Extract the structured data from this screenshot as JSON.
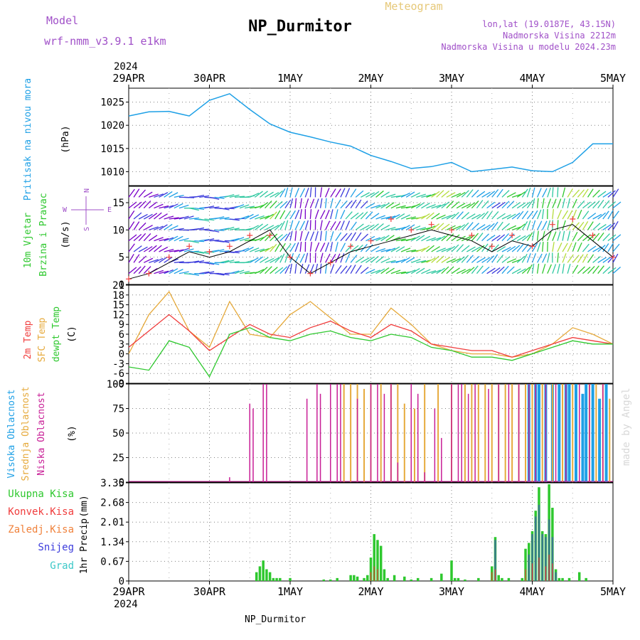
{
  "header": {
    "model_label": "Model",
    "model_name": "wrf-nmm_v3.9.1 e1km",
    "title": "NP_Durmitor",
    "meteogram_label": "Meteogram",
    "lonlat": "lon,lat (19.0187E, 43.15N)",
    "altitude": "Nadmorska Visina 2212m",
    "model_altitude": "Nadmorska Visina u modelu 2024.23m",
    "footer_station": "NP_Durmitor",
    "credit": "made by Angel",
    "year": "2024"
  },
  "colors": {
    "pressure": "#1ea0e6",
    "wind_label": "#2ec82e",
    "temp2m": "#f03c3c",
    "sfc": "#e6aa3c",
    "dewpt": "#2ec82e",
    "high_cloud": "#1ea0e6",
    "mid_cloud": "#e6aa3c",
    "low_cloud": "#c81e96",
    "total_precip": "#2ec82e",
    "conv_precip": "#f03c3c",
    "frozen_precip": "#f0823c",
    "snow": "#3c3cdc",
    "graupel": "#3cc8c8",
    "compass": "#a050c8"
  },
  "chart_data": [
    {
      "id": "pressure",
      "type": "line",
      "ylabel_name": "Pritisak na nivou mora",
      "ylabel_unit": "(hPa)",
      "xticks": [
        "29APR",
        "30APR",
        "1MAY",
        "2MAY",
        "3MAY",
        "4MAY",
        "5MAY"
      ],
      "ylim": [
        1007,
        1028
      ],
      "yticks": [
        1010,
        1015,
        1020,
        1025
      ],
      "grid": true,
      "x_hours": [
        0,
        6,
        12,
        18,
        24,
        30,
        36,
        42,
        48,
        54,
        60,
        66,
        72,
        78,
        84,
        90,
        96,
        102,
        108,
        114,
        120,
        126,
        132,
        138,
        144
      ],
      "values": [
        1022.0,
        1022.9,
        1023.0,
        1022.0,
        1025.4,
        1026.8,
        1023.4,
        1020.3,
        1018.5,
        1017.5,
        1016.4,
        1015.5,
        1013.5,
        1012.2,
        1010.7,
        1011.1,
        1012.0,
        1010.0,
        1010.5,
        1011.0,
        1010.2,
        1010.0,
        1012.0,
        1016.0,
        1016.0
      ]
    },
    {
      "id": "wind",
      "type": "line",
      "ylabel_name": "10m Vjetar",
      "ylabel_sub": "Brzina i Pravac",
      "ylabel_unit": "(m/s)",
      "compass": {
        "n": "N",
        "w": "W",
        "e": "E",
        "s": "S"
      },
      "ylim": [
        0,
        18
      ],
      "yticks": [
        0,
        5,
        10,
        15
      ],
      "grid": true,
      "x_hours": [
        0,
        6,
        12,
        18,
        24,
        30,
        36,
        42,
        48,
        54,
        60,
        66,
        72,
        78,
        84,
        90,
        96,
        102,
        108,
        114,
        120,
        126,
        132,
        138,
        144
      ],
      "speed": [
        1,
        2,
        4,
        6,
        5,
        6,
        8,
        10,
        5,
        2,
        4,
        6,
        7,
        8,
        9,
        10,
        9,
        8,
        6,
        8,
        7,
        10,
        11,
        8,
        5
      ],
      "gust": [
        1,
        2,
        5,
        7,
        6,
        7,
        9,
        9,
        5,
        2,
        4,
        7,
        8,
        12,
        10,
        11,
        10,
        9,
        7,
        9,
        7,
        11,
        12,
        9,
        5
      ],
      "direction_deg": [
        220,
        240,
        250,
        270,
        270,
        265,
        250,
        230,
        200,
        190,
        200,
        220,
        240,
        250,
        250,
        240,
        235,
        230,
        225,
        240,
        200,
        190,
        210,
        230,
        220
      ]
    },
    {
      "id": "temp",
      "type": "line",
      "ylabel_names": [
        "2m Temp",
        "SFC Temp",
        "dewpt Temp"
      ],
      "ylabel_unit": "(C)",
      "ylim": [
        -9,
        21
      ],
      "yticks": [
        -9,
        -6,
        -3,
        0,
        3,
        6,
        9,
        12,
        15,
        18,
        21
      ],
      "grid": true,
      "x_hours": [
        0,
        6,
        12,
        18,
        24,
        30,
        36,
        42,
        48,
        54,
        60,
        66,
        72,
        78,
        84,
        90,
        96,
        102,
        108,
        114,
        120,
        126,
        132,
        138,
        144
      ],
      "series": [
        {
          "name": "2m Temp",
          "values": [
            2,
            7,
            12,
            7,
            1,
            5,
            9,
            6,
            5,
            8,
            10,
            7,
            5,
            9,
            7,
            3,
            2,
            1,
            1,
            -1,
            1,
            3,
            5,
            4,
            3
          ]
        },
        {
          "name": "SFC Temp",
          "values": [
            0,
            12,
            19,
            7,
            2,
            16,
            6,
            5,
            12,
            16,
            11,
            6,
            6,
            14,
            9,
            3,
            1,
            0,
            0,
            -1,
            0,
            3,
            8,
            6,
            3
          ]
        },
        {
          "name": "dewpt Temp",
          "values": [
            -4,
            -5,
            4,
            2,
            -7,
            6,
            8,
            5,
            4,
            6,
            7,
            5,
            4,
            6,
            5,
            2,
            1,
            -1,
            -1,
            -2,
            0,
            2,
            4,
            3,
            3
          ]
        }
      ]
    },
    {
      "id": "clouds",
      "type": "bar",
      "ylabel_names": [
        "Visoka Oblacnost",
        "Srednja Oblacnost",
        "Niska Oblacnost"
      ],
      "ylabel_unit": "(%)",
      "ylim": [
        0,
        100
      ],
      "yticks": [
        0,
        25,
        50,
        75,
        100
      ],
      "grid": true,
      "series": [
        {
          "name": "Visoka Oblacnost",
          "x_hours": [
            119,
            121,
            122,
            124,
            126,
            128,
            130,
            131,
            133,
            135,
            136,
            138,
            140,
            142
          ],
          "values": [
            100,
            100,
            100,
            100,
            100,
            100,
            100,
            100,
            100,
            90,
            100,
            100,
            85,
            100
          ]
        },
        {
          "name": "Srednja Oblacnost",
          "x_hours": [
            64,
            66,
            68,
            70,
            72,
            75,
            78,
            80,
            82,
            85,
            88,
            92,
            96,
            100,
            102,
            104,
            106,
            108,
            110,
            112,
            114,
            116,
            118,
            120,
            123,
            126,
            129,
            132,
            137,
            139,
            141,
            143
          ],
          "values": [
            100,
            100,
            100,
            95,
            100,
            100,
            100,
            100,
            80,
            75,
            100,
            100,
            100,
            100,
            100,
            100,
            100,
            100,
            100,
            100,
            100,
            100,
            100,
            100,
            100,
            100,
            100,
            100,
            100,
            100,
            100,
            85
          ]
        },
        {
          "name": "Niska Oblacnost",
          "x_hours": [
            30,
            36,
            37,
            40,
            41,
            53,
            56,
            57,
            60,
            62,
            63,
            68,
            72,
            74,
            76,
            78,
            80,
            84,
            86,
            88,
            91,
            93,
            96,
            98,
            99,
            101,
            103,
            107,
            110,
            113,
            116,
            119,
            121,
            124,
            127,
            130,
            134,
            137,
            141
          ],
          "values": [
            5,
            80,
            75,
            100,
            100,
            85,
            100,
            90,
            100,
            100,
            100,
            85,
            100,
            100,
            90,
            100,
            20,
            100,
            90,
            10,
            75,
            45,
            100,
            100,
            100,
            90,
            100,
            95,
            100,
            100,
            100,
            100,
            100,
            100,
            100,
            100,
            100,
            100,
            100
          ]
        }
      ]
    },
    {
      "id": "precip",
      "type": "bar",
      "ylabel_name": "1hr Precip",
      "ylabel_unit": "(mm)",
      "legend": [
        "Ukupna Kisa",
        "Konvek.Kisa",
        "Zaledj.Kisa",
        "Snijeg",
        "Grad"
      ],
      "ylim": [
        0,
        3.35
      ],
      "yticks": [
        0,
        0.67,
        1.34,
        2.01,
        2.68,
        3.35
      ],
      "ytick_labels": [
        "0",
        "0.67",
        "1.34",
        "2.01",
        "2.68",
        "3.35"
      ],
      "xticks": [
        "29APR",
        "30APR",
        "1MAY",
        "2MAY",
        "3MAY",
        "4MAY",
        "5MAY"
      ],
      "grid": true,
      "total": {
        "x_hours": [
          38,
          39,
          40,
          41,
          42,
          43,
          44,
          45,
          48,
          58,
          60,
          62,
          66,
          67,
          68,
          70,
          71,
          72,
          73,
          74,
          75,
          76,
          77,
          79,
          82,
          84,
          86,
          90,
          93,
          96,
          97,
          98,
          100,
          104,
          108,
          109,
          110,
          111,
          113,
          117,
          118,
          119,
          120,
          121,
          122,
          123,
          124,
          125,
          126,
          127,
          128,
          129,
          131,
          134,
          136
        ],
        "values": [
          0.3,
          0.5,
          0.7,
          0.4,
          0.3,
          0.1,
          0.1,
          0.1,
          0.1,
          0.05,
          0.05,
          0.1,
          0.2,
          0.2,
          0.15,
          0.1,
          0.2,
          0.8,
          1.6,
          1.4,
          1.2,
          0.4,
          0.1,
          0.2,
          0.15,
          0.05,
          0.1,
          0.1,
          0.25,
          0.7,
          0.1,
          0.1,
          0.05,
          0.1,
          0.5,
          1.5,
          0.2,
          0.1,
          0.1,
          0.1,
          1.1,
          1.3,
          1.7,
          2.4,
          3.2,
          1.7,
          1.6,
          3.3,
          2.5,
          0.4,
          0.1,
          0.1,
          0.1,
          0.3,
          0.1
        ]
      },
      "convective": {
        "x_hours": [
          72,
          73,
          74,
          108,
          109,
          118,
          120,
          122,
          124,
          125,
          126
        ],
        "values": [
          0.3,
          0.5,
          0.4,
          0.3,
          0.4,
          0.4,
          0.6,
          0.8,
          0.5,
          0.9,
          0.6
        ]
      },
      "snow": {
        "x_hours": [
          109,
          119,
          120,
          121,
          122,
          123,
          124,
          125,
          126,
          127
        ],
        "values": [
          1.4,
          0.9,
          1.6,
          2.2,
          2.6,
          1.6,
          1.5,
          2.1,
          1.5,
          0.3
        ]
      }
    }
  ]
}
